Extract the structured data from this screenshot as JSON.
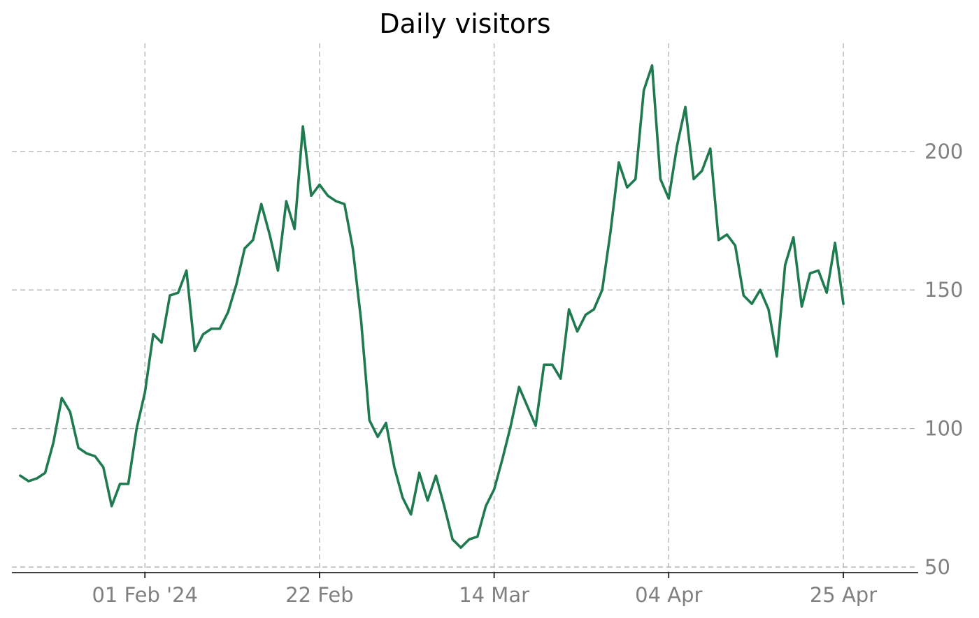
{
  "chart_data": {
    "type": "line",
    "title": "Daily visitors",
    "xlabel": "",
    "ylabel": "",
    "x_start": "2024-01-17",
    "x_end": "2024-04-29",
    "xlim": [
      "2024-01-16",
      "2024-05-04"
    ],
    "ylim": [
      48,
      239
    ],
    "x_ticks": [
      {
        "date": "2024-02-01",
        "label": "01 Feb '24"
      },
      {
        "date": "2024-02-22",
        "label": "22 Feb"
      },
      {
        "date": "2024-03-14",
        "label": "14 Mar"
      },
      {
        "date": "2024-04-04",
        "label": "04 Apr"
      },
      {
        "date": "2024-04-25",
        "label": "25 Apr"
      }
    ],
    "y_ticks": [
      {
        "value": 50,
        "label": "50"
      },
      {
        "value": 100,
        "label": "100"
      },
      {
        "value": 150,
        "label": "150"
      },
      {
        "value": 200,
        "label": "200"
      }
    ],
    "grid": true,
    "y_axis_side": "right",
    "series": [
      {
        "color": "#1f7a4f",
        "values": [
          83,
          81,
          82,
          84,
          95,
          111,
          106,
          93,
          91,
          90,
          86,
          72,
          80,
          80,
          100,
          113,
          134,
          131,
          148,
          149,
          157,
          128,
          134,
          136,
          136,
          142,
          152,
          165,
          168,
          181,
          170,
          157,
          182,
          172,
          209,
          184,
          188,
          184,
          182,
          181,
          165,
          139,
          103,
          97,
          102,
          86,
          75,
          69,
          84,
          74,
          83,
          72,
          60,
          57,
          60,
          61,
          72,
          78,
          89,
          101,
          115,
          108,
          101,
          123,
          123,
          118,
          143,
          135,
          141,
          143,
          150,
          171,
          196,
          187,
          190,
          222,
          231,
          190,
          183,
          202,
          216,
          190,
          193,
          201,
          168,
          170,
          166,
          148,
          145,
          150,
          143,
          126,
          159,
          169,
          144,
          156,
          157,
          149,
          167,
          145
        ]
      }
    ]
  }
}
